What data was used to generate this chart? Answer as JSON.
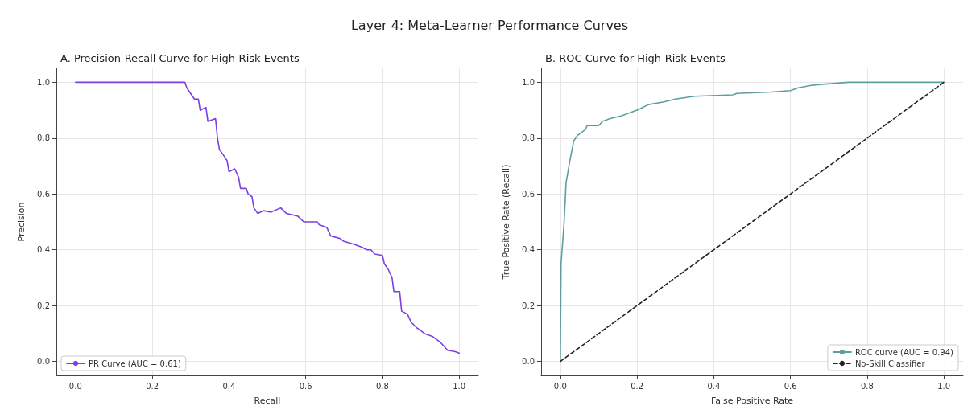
{
  "chart_data": [
    {
      "type": "line",
      "title": "A. Precision-Recall Curve for High-Risk Events",
      "xlabel": "Recall",
      "ylabel": "Precision",
      "annotations": [
        "Layer 4: Meta-Learner Performance Curves"
      ],
      "xlim": [
        -0.05,
        1.05
      ],
      "ylim": [
        -0.05,
        1.05
      ],
      "xticks": [
        {
          "value": 0,
          "label": "0.0"
        },
        {
          "value": 0.2,
          "label": "0.2"
        },
        {
          "value": 0.4,
          "label": "0.4"
        },
        {
          "value": 0.6,
          "label": "0.6"
        },
        {
          "value": 0.8,
          "label": "0.8"
        },
        {
          "value": 1,
          "label": "1.0"
        }
      ],
      "yticks": [
        {
          "value": 0,
          "label": "0.0"
        },
        {
          "value": 0.2,
          "label": "0.2"
        },
        {
          "value": 0.4,
          "label": "0.4"
        },
        {
          "value": 0.6,
          "label": "0.6"
        },
        {
          "value": 0.8,
          "label": "0.8"
        },
        {
          "value": 1,
          "label": "1.0"
        }
      ],
      "grid": true,
      "legend": "bottom left",
      "marker": "none",
      "series": [
        {
          "name": "PR Curve (AUC = 0.61)",
          "color": "#7b3fe4",
          "line_style": "solid",
          "x": [
            0,
            0.285,
            0.29,
            0.3,
            0.31,
            0.32,
            0.325,
            0.34,
            0.345,
            0.365,
            0.37,
            0.375,
            0.385,
            0.395,
            0.4,
            0.415,
            0.425,
            0.43,
            0.445,
            0.45,
            0.46,
            0.465,
            0.475,
            0.49,
            0.51,
            0.535,
            0.55,
            0.58,
            0.595,
            0.63,
            0.635,
            0.655,
            0.665,
            0.69,
            0.7,
            0.725,
            0.745,
            0.76,
            0.77,
            0.78,
            0.8,
            0.805,
            0.815,
            0.825,
            0.83,
            0.845,
            0.85,
            0.865,
            0.875,
            0.89,
            0.91,
            0.93,
            0.95,
            0.97,
            0.99,
            1.0
          ],
          "values": [
            1,
            1,
            0.98,
            0.96,
            0.94,
            0.94,
            0.9,
            0.91,
            0.86,
            0.87,
            0.8,
            0.76,
            0.74,
            0.72,
            0.68,
            0.69,
            0.66,
            0.62,
            0.62,
            0.6,
            0.59,
            0.55,
            0.53,
            0.54,
            0.535,
            0.55,
            0.53,
            0.52,
            0.5,
            0.5,
            0.49,
            0.48,
            0.45,
            0.44,
            0.43,
            0.42,
            0.41,
            0.4,
            0.4,
            0.385,
            0.38,
            0.35,
            0.33,
            0.3,
            0.25,
            0.25,
            0.18,
            0.17,
            0.14,
            0.12,
            0.1,
            0.09,
            0.07,
            0.04,
            0.035,
            0.03
          ]
        }
      ]
    },
    {
      "type": "line",
      "title": "B. ROC Curve for High-Risk Events",
      "xlabel": "False Positive Rate",
      "ylabel": "True Positive Rate (Recall)",
      "xlim": [
        -0.05,
        1.05
      ],
      "ylim": [
        -0.05,
        1.05
      ],
      "xticks": [
        {
          "value": 0,
          "label": "0.0"
        },
        {
          "value": 0.2,
          "label": "0.2"
        },
        {
          "value": 0.4,
          "label": "0.4"
        },
        {
          "value": 0.6,
          "label": "0.6"
        },
        {
          "value": 0.8,
          "label": "0.8"
        },
        {
          "value": 1,
          "label": "1.0"
        }
      ],
      "yticks": [
        {
          "value": 0,
          "label": "0.0"
        },
        {
          "value": 0.2,
          "label": "0.2"
        },
        {
          "value": 0.4,
          "label": "0.4"
        },
        {
          "value": 0.6,
          "label": "0.6"
        },
        {
          "value": 0.8,
          "label": "0.8"
        },
        {
          "value": 1,
          "label": "1.0"
        }
      ],
      "grid": true,
      "legend": "bottom right",
      "marker": "none",
      "series": [
        {
          "name": "ROC curve (AUC = 0.94)",
          "color": "#5f9ea0",
          "line_style": "solid",
          "x": [
            0,
            0.002,
            0.01,
            0.015,
            0.025,
            0.035,
            0.045,
            0.055,
            0.065,
            0.07,
            0.1,
            0.11,
            0.13,
            0.16,
            0.2,
            0.23,
            0.27,
            0.3,
            0.35,
            0.45,
            0.46,
            0.55,
            0.6,
            0.62,
            0.66,
            0.75,
            1
          ],
          "values": [
            0,
            0.35,
            0.5,
            0.64,
            0.72,
            0.79,
            0.81,
            0.82,
            0.83,
            0.845,
            0.845,
            0.86,
            0.87,
            0.88,
            0.9,
            0.92,
            0.93,
            0.94,
            0.95,
            0.955,
            0.96,
            0.965,
            0.97,
            0.98,
            0.99,
            1,
            1
          ]
        },
        {
          "name": "No-Skill Classifier",
          "color": "#222222",
          "line_style": "dashed",
          "x": [
            0,
            1
          ],
          "values": [
            0,
            1
          ]
        }
      ]
    }
  ]
}
